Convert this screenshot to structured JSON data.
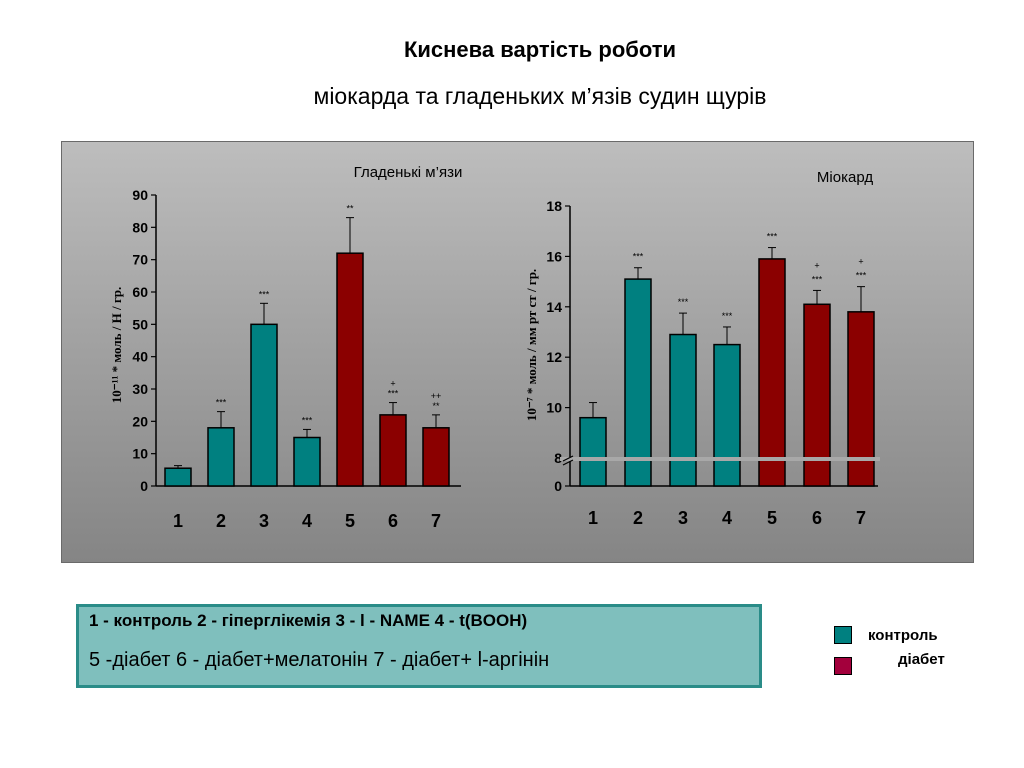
{
  "title": "Киснева вартість роботи",
  "subtitle": "міокарда та гладеньких м’язів судин щурів",
  "chart_data": [
    {
      "type": "bar",
      "title": "Гладенькі м’язи",
      "ylabel": "10⁻¹¹ * моль / Н / гр.",
      "categories": [
        "1",
        "2",
        "3",
        "4",
        "5",
        "6",
        "7"
      ],
      "values": [
        5.5,
        18,
        50,
        15,
        72,
        22,
        18
      ],
      "errors": [
        0.8,
        5,
        6.5,
        2.5,
        11,
        3.8,
        4
      ],
      "colors": [
        "#008080",
        "#008080",
        "#008080",
        "#008080",
        "#8b0000",
        "#8b0000",
        "#8b0000"
      ],
      "annotations": [
        [
          ""
        ],
        [
          "***"
        ],
        [
          "***"
        ],
        [
          "***"
        ],
        [
          "**"
        ],
        [
          "+",
          "***"
        ],
        [
          "++",
          "**"
        ]
      ],
      "ylim": [
        0,
        90
      ],
      "yticks": [
        "0",
        "10",
        "20",
        "30",
        "40",
        "50",
        "60",
        "70",
        "80",
        "90"
      ]
    },
    {
      "type": "bar",
      "title": "Міокард",
      "ylabel": "10⁻⁷ * моль / мм рт ст / гр.",
      "categories": [
        "1",
        "2",
        "3",
        "4",
        "5",
        "6",
        "7"
      ],
      "values": [
        9.6,
        15.1,
        12.9,
        12.5,
        15.9,
        14.1,
        13.8
      ],
      "errors": [
        0.6,
        0.45,
        0.85,
        0.7,
        0.45,
        0.55,
        1.0
      ],
      "colors": [
        "#008080",
        "#008080",
        "#008080",
        "#008080",
        "#8b0000",
        "#8b0000",
        "#8b0000"
      ],
      "annotations": [
        [
          ""
        ],
        [
          "***"
        ],
        [
          "***"
        ],
        [
          "***"
        ],
        [
          "***"
        ],
        [
          "+",
          "***"
        ],
        [
          "+",
          "***"
        ]
      ],
      "ylim": [
        8,
        18
      ],
      "axis_break": true,
      "yticks": [
        "0",
        "8",
        "10",
        "12",
        "14",
        "16",
        "18"
      ]
    }
  ],
  "legend_box": {
    "line1": "1 - контроль 2 - гіперглікемія 3 - l - NAME 4 - t(BOOH)",
    "line2": "5 -діабет 6 - діабет+мелатонін 7 - діабет+ l-аргінін"
  },
  "legend": [
    {
      "label": "контроль",
      "color": "#008080"
    },
    {
      "label": "діабет",
      "color": "#a3003c"
    }
  ]
}
